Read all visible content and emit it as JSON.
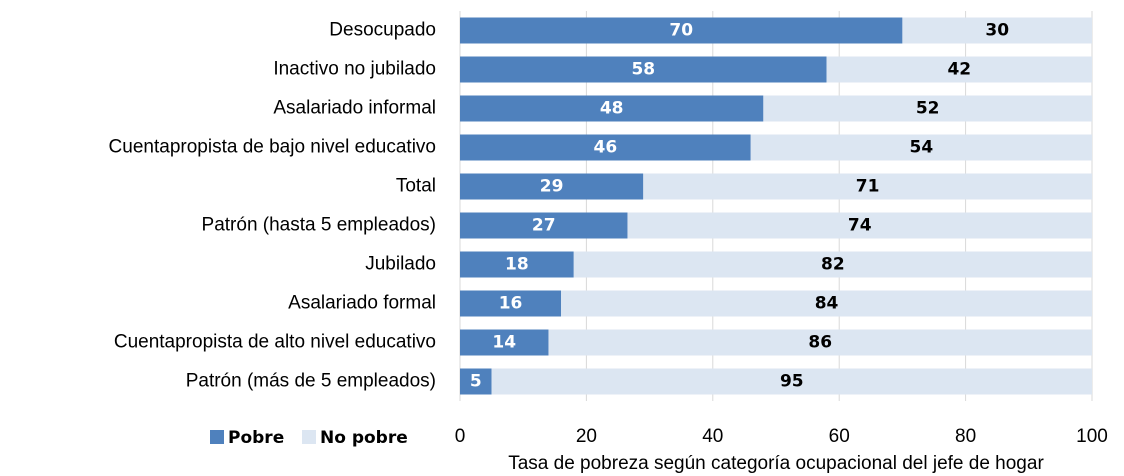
{
  "chart_data": {
    "type": "stacked-bar-horizontal",
    "xlabel": "Tasa de pobreza según categoría ocupacional del jefe de hogar",
    "categories": [
      "Desocupado",
      "Inactivo no jubilado",
      "Asalariado informal",
      "Cuentapropista de bajo nivel educativo",
      "Total",
      "Patrón (hasta 5 empleados)",
      "Jubilado",
      "Asalariado formal",
      "Cuentapropista de alto nivel educativo",
      "Patrón (más de 5 empleados)"
    ],
    "series": [
      {
        "name": "Pobre",
        "color": "#4f81bd",
        "values": [
          70,
          58,
          48,
          46,
          29,
          26.5,
          18,
          16,
          14,
          5
        ],
        "value_labels": [
          "70",
          "58",
          "48",
          "46",
          "29",
          "27",
          "18",
          "16",
          "14",
          "5"
        ]
      },
      {
        "name": "No pobre",
        "color": "#dce6f2",
        "values": [
          30,
          42,
          52,
          54,
          71,
          73.5,
          82,
          84,
          86,
          95
        ],
        "value_labels": [
          "30",
          "42",
          "52",
          "54",
          "71",
          "74",
          "82",
          "84",
          "86",
          "95"
        ]
      }
    ],
    "xlim": [
      0,
      100
    ],
    "xticks": [
      0,
      20,
      40,
      60,
      80,
      100
    ],
    "grid": true,
    "legend": "bottom-left"
  }
}
